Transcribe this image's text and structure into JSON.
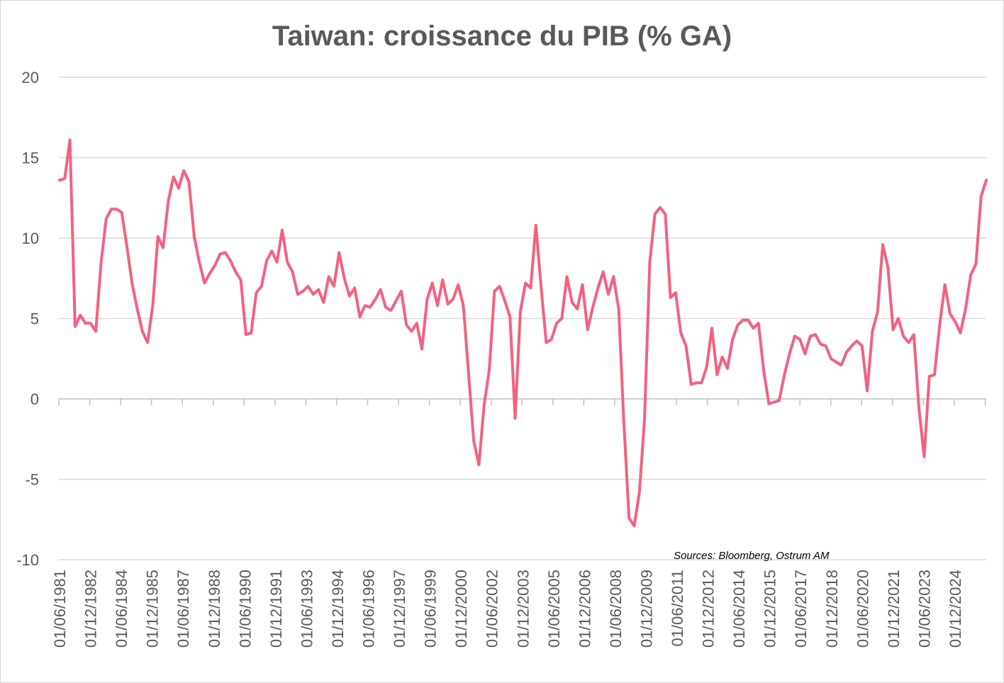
{
  "chart_data": {
    "type": "line",
    "title": "Taiwan: croissance du PIB (% GA)",
    "source_note": "Sources: Bloomberg, Ostrum AM",
    "ylim": [
      -10,
      20
    ],
    "yticks": [
      -10,
      -5,
      0,
      5,
      10,
      15,
      20
    ],
    "ytick_labels": [
      "-10",
      "-5",
      "0",
      "5",
      "10",
      "15",
      "20"
    ],
    "xtick_labels": [
      "01/06/1981",
      "01/12/1982",
      "01/06/1984",
      "01/12/1985",
      "01/06/1987",
      "01/12/1988",
      "01/06/1990",
      "01/12/1991",
      "01/06/1993",
      "01/12/1994",
      "01/06/1996",
      "01/12/1997",
      "01/06/1999",
      "01/12/2000",
      "01/06/2002",
      "01/12/2003",
      "01/06/2005",
      "01/12/2006",
      "01/06/2008",
      "01/12/2009",
      "01/06/2011",
      "01/12/2012",
      "01/06/2014",
      "01/12/2015",
      "01/06/2017",
      "01/12/2018",
      "01/06/2020",
      "01/12/2021",
      "01/06/2023",
      "01/12/2024"
    ],
    "grid": true,
    "line_color": "#F4617F",
    "series": [
      {
        "x_start": "1981-Q2",
        "frequency": "quarterly",
        "values": [
          13.6,
          13.7,
          16.1,
          4.5,
          5.2,
          4.7,
          4.7,
          4.2,
          8.4,
          11.2,
          11.8,
          11.8,
          11.6,
          9.5,
          7.2,
          5.6,
          4.2,
          3.5,
          5.8,
          10.1,
          9.4,
          12.3,
          13.8,
          13.1,
          14.2,
          13.5,
          10.1,
          8.5,
          7.2,
          7.8,
          8.3,
          9.0,
          9.1,
          8.6,
          7.9,
          7.4,
          4.0,
          4.1,
          6.6,
          7.0,
          8.6,
          9.2,
          8.5,
          10.5,
          8.5,
          7.9,
          6.5,
          6.7,
          7.0,
          6.5,
          6.8,
          6.0,
          7.6,
          7.0,
          9.1,
          7.5,
          6.4,
          6.9,
          5.1,
          5.8,
          5.7,
          6.2,
          6.8,
          5.7,
          5.5,
          6.1,
          6.7,
          4.6,
          4.2,
          4.7,
          3.1,
          6.2,
          7.2,
          5.8,
          7.4,
          5.9,
          6.2,
          7.1,
          5.8,
          1.6,
          -2.6,
          -4.1,
          -0.4,
          1.8,
          6.7,
          7.0,
          6.1,
          5.1,
          -1.2,
          5.4,
          7.2,
          6.9,
          10.8,
          7.0,
          3.5,
          3.7,
          4.7,
          5.0,
          7.6,
          6.0,
          5.6,
          7.1,
          4.3,
          5.7,
          6.9,
          7.9,
          6.5,
          7.6,
          5.6,
          -1.5,
          -7.4,
          -7.9,
          -5.8,
          -1.2,
          8.5,
          11.5,
          11.9,
          11.5,
          6.3,
          6.6,
          4.1,
          3.3,
          0.9,
          1.0,
          1.0,
          2.0,
          4.4,
          1.5,
          2.6,
          1.9,
          3.7,
          4.6,
          4.9,
          4.9,
          4.4,
          4.7,
          1.8,
          -0.3,
          -0.2,
          -0.1,
          1.5,
          2.8,
          3.9,
          3.7,
          2.8,
          3.9,
          4.0,
          3.4,
          3.3,
          2.5,
          2.3,
          2.1,
          2.9,
          3.3,
          3.6,
          3.3,
          0.5,
          4.2,
          5.4,
          9.6,
          8.2,
          4.3,
          5.0,
          3.9,
          3.5,
          4.0,
          -0.6,
          -3.6,
          1.4,
          1.5,
          4.6,
          7.1,
          5.3,
          4.8,
          4.1,
          5.6,
          7.7,
          8.4,
          12.6,
          13.6
        ]
      }
    ]
  }
}
